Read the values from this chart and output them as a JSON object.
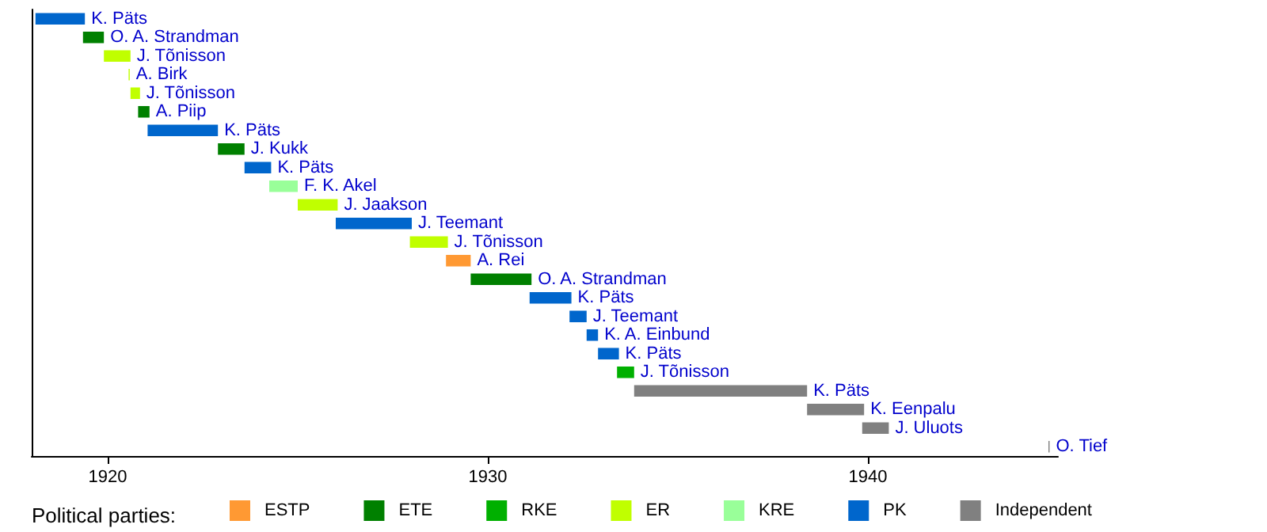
{
  "chart_data": {
    "type": "bar",
    "orientation": "horizontal",
    "legend_title": "Political parties:",
    "legend": "bottom",
    "categories": [
      "K. Päts",
      "O. A. Strandman",
      "J. Tõnisson",
      "A. Birk",
      "J. Tõnisson",
      "A. Piip",
      "K. Päts",
      "J. Kukk",
      "K. Päts",
      "F. K. Akel",
      "J. Jaakson",
      "J. Teemant",
      "J. Tõnisson",
      "A. Rei",
      "O. A. Strandman",
      "K. Päts",
      "J. Teemant",
      "K. A. Einbund",
      "K. Päts",
      "J. Tõnisson",
      "K. Päts",
      "K. Eenpalu",
      "J. Uluots",
      "O. Tief"
    ],
    "xlim": [
      1918,
      1945
    ],
    "xticks": [
      1920,
      1930,
      1940
    ],
    "grid": false,
    "series": [
      {
        "name": "ESTP",
        "color": "#ff9933",
        "base": [
          null,
          null,
          null,
          null,
          null,
          null,
          null,
          null,
          null,
          null,
          null,
          null,
          null,
          1928.9,
          null,
          null,
          null,
          null,
          null,
          null,
          null,
          null,
          null,
          null
        ],
        "values": [
          null,
          null,
          null,
          null,
          null,
          null,
          null,
          null,
          null,
          null,
          null,
          null,
          null,
          0.65,
          null,
          null,
          null,
          null,
          null,
          null,
          null,
          null,
          null,
          null
        ]
      },
      {
        "name": "ETE",
        "color": "#008000",
        "base": [
          null,
          1919.35,
          null,
          null,
          null,
          1920.8,
          null,
          1922.9,
          null,
          null,
          null,
          null,
          null,
          null,
          1929.55,
          null,
          null,
          null,
          null,
          null,
          null,
          null,
          null,
          null
        ],
        "values": [
          null,
          0.55,
          null,
          null,
          null,
          0.3,
          null,
          0.7,
          null,
          null,
          null,
          null,
          null,
          null,
          1.6,
          null,
          null,
          null,
          null,
          null,
          null,
          null,
          null,
          null
        ]
      },
      {
        "name": "RKE",
        "color": "#00b000",
        "base": [
          null,
          null,
          null,
          null,
          null,
          null,
          null,
          null,
          null,
          null,
          null,
          null,
          null,
          null,
          null,
          null,
          null,
          null,
          null,
          1933.4,
          null,
          null,
          null,
          null
        ],
        "values": [
          null,
          null,
          null,
          null,
          null,
          null,
          null,
          null,
          null,
          null,
          null,
          null,
          null,
          null,
          null,
          null,
          null,
          null,
          null,
          0.45,
          null,
          null,
          null,
          null
        ]
      },
      {
        "name": "ER",
        "color": "#c0ff00",
        "base": [
          null,
          null,
          1919.9,
          1920.55,
          1920.6,
          null,
          null,
          null,
          null,
          null,
          1925.0,
          null,
          1927.95,
          null,
          null,
          null,
          null,
          null,
          null,
          null,
          null,
          null,
          null,
          null
        ],
        "values": [
          null,
          null,
          0.7,
          0.03,
          0.25,
          null,
          null,
          null,
          null,
          null,
          1.05,
          null,
          1.0,
          null,
          null,
          null,
          null,
          null,
          null,
          null,
          null,
          null,
          null,
          null
        ]
      },
      {
        "name": "KRE",
        "color": "#99ff99",
        "base": [
          null,
          null,
          null,
          null,
          null,
          null,
          null,
          null,
          null,
          1924.25,
          null,
          null,
          null,
          null,
          null,
          null,
          null,
          null,
          null,
          null,
          null,
          null,
          null,
          null
        ],
        "values": [
          null,
          null,
          null,
          null,
          null,
          null,
          null,
          null,
          null,
          0.75,
          null,
          null,
          null,
          null,
          null,
          null,
          null,
          null,
          null,
          null,
          null,
          null,
          null,
          null
        ]
      },
      {
        "name": "PK",
        "color": "#0066cc",
        "base": [
          1918.1,
          null,
          null,
          null,
          null,
          null,
          1921.05,
          null,
          1923.6,
          null,
          null,
          1926.0,
          null,
          null,
          null,
          1931.1,
          1932.15,
          1932.6,
          1932.9,
          null,
          null,
          null,
          null,
          null
        ],
        "values": [
          1.3,
          null,
          null,
          null,
          null,
          null,
          1.85,
          null,
          0.7,
          null,
          null,
          2.0,
          null,
          null,
          null,
          1.1,
          0.45,
          0.3,
          0.55,
          null,
          null,
          null,
          null,
          null
        ]
      },
      {
        "name": "Independent",
        "color": "#808080",
        "base": [
          null,
          null,
          null,
          null,
          null,
          null,
          null,
          null,
          null,
          null,
          null,
          null,
          null,
          null,
          null,
          null,
          null,
          null,
          null,
          null,
          1933.85,
          1938.4,
          1939.85,
          1944.75
        ],
        "values": [
          null,
          null,
          null,
          null,
          null,
          null,
          null,
          null,
          null,
          null,
          null,
          null,
          null,
          null,
          null,
          null,
          null,
          null,
          null,
          null,
          4.55,
          1.5,
          0.7,
          0.03
        ]
      }
    ]
  }
}
